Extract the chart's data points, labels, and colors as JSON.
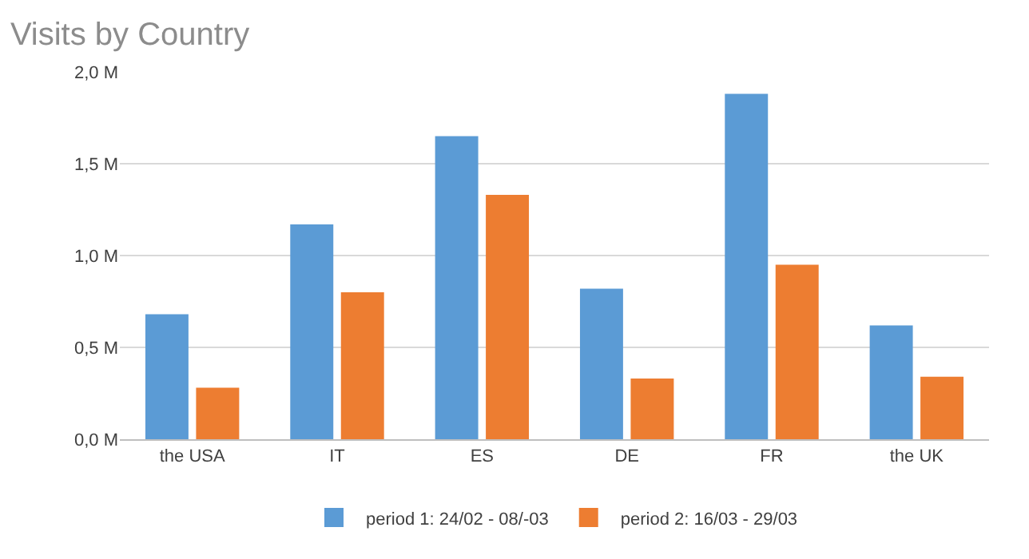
{
  "chart_data": {
    "type": "bar",
    "title": "Visits by Country",
    "categories": [
      "the USA",
      "IT",
      "ES",
      "DE",
      "FR",
      "the UK"
    ],
    "series": [
      {
        "name": "period 1: 24/02 - 08/-03",
        "color": "#5b9bd5",
        "values": [
          0.68,
          1.17,
          1.65,
          0.82,
          1.88,
          0.62
        ]
      },
      {
        "name": "period 2: 16/03 - 29/03",
        "color": "#ed7d31",
        "values": [
          0.28,
          0.8,
          1.33,
          0.33,
          0.95,
          0.34
        ]
      }
    ],
    "ylim": [
      0,
      2
    ],
    "yticks": [
      {
        "value": 0,
        "label": "0,0 M"
      },
      {
        "value": 0.5,
        "label": "0,5 M"
      },
      {
        "value": 1,
        "label": "1,0 M"
      },
      {
        "value": 1.5,
        "label": "1,5 M"
      },
      {
        "value": 2,
        "label": "2,0 M"
      }
    ],
    "grid": "y",
    "legend": "bottom"
  }
}
